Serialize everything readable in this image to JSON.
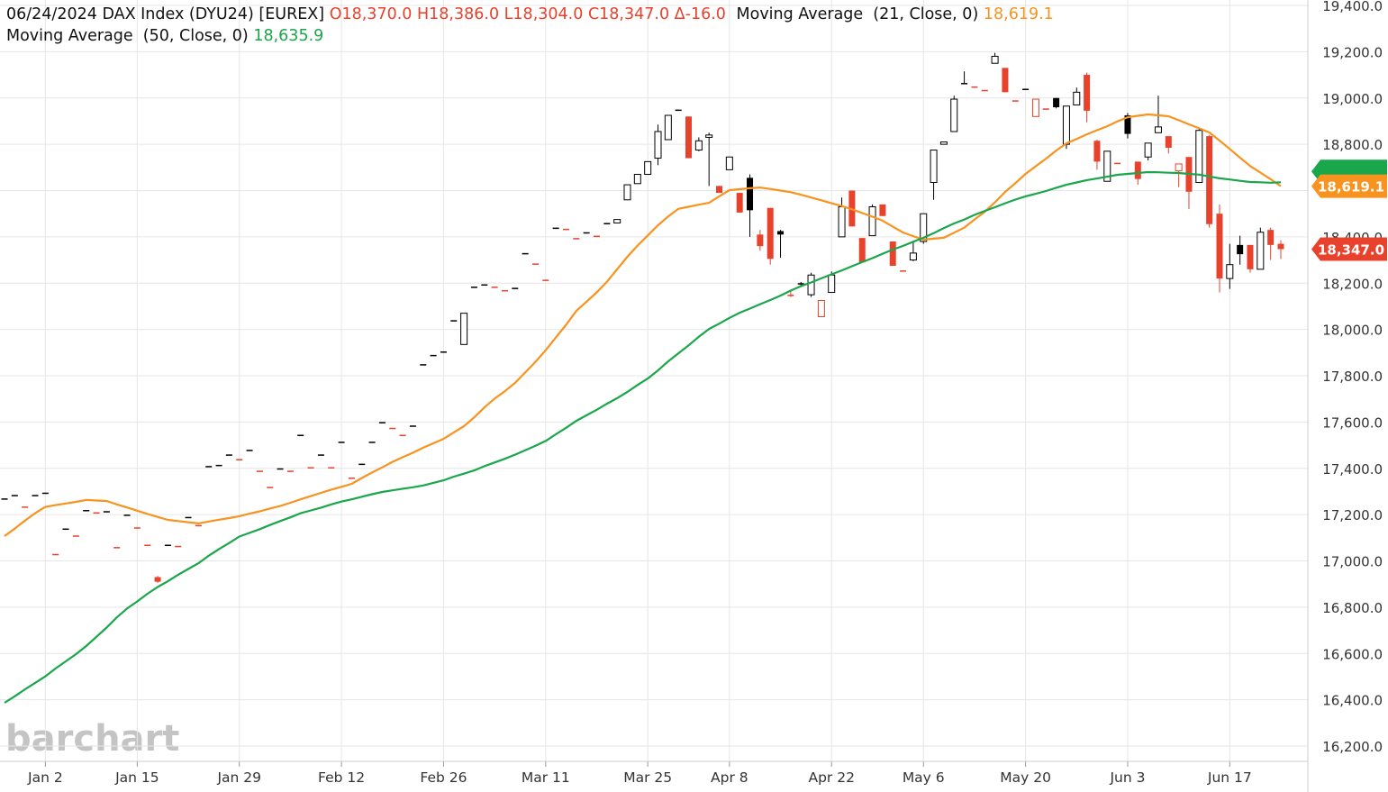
{
  "chart_data": {
    "type": "candlestick",
    "header": {
      "date": "06/24/2024",
      "symbol": "DAX Index (DYU24) [EUREX]",
      "open": "O18,370.0",
      "high": "H18,386.0",
      "low": "L18,304.0",
      "close": "C18,347.0",
      "change": "Δ-16.0"
    },
    "watermark": "barchart",
    "categories": [
      null,
      null,
      null,
      null,
      "Jan 2",
      null,
      null,
      null,
      null,
      null,
      null,
      null,
      null,
      "Jan 15",
      null,
      null,
      null,
      null,
      null,
      null,
      null,
      null,
      null,
      "Jan 29",
      null,
      null,
      null,
      null,
      null,
      null,
      null,
      null,
      null,
      "Feb 12",
      null,
      null,
      null,
      null,
      null,
      null,
      null,
      null,
      null,
      "Feb 26",
      null,
      null,
      null,
      null,
      null,
      null,
      null,
      null,
      null,
      "Mar 11",
      null,
      null,
      null,
      null,
      null,
      null,
      null,
      null,
      null,
      "Mar 25",
      null,
      null,
      null,
      null,
      null,
      null,
      null,
      "Apr 8",
      null,
      null,
      null,
      null,
      null,
      null,
      null,
      null,
      null,
      "Apr 22",
      null,
      null,
      null,
      null,
      null,
      null,
      null,
      null,
      "May 6",
      null,
      null,
      null,
      null,
      null,
      null,
      null,
      null,
      null,
      "May 20",
      null,
      null,
      null,
      null,
      null,
      null,
      null,
      null,
      null,
      "Jun 3",
      null,
      null,
      null,
      null,
      null,
      null,
      null,
      null,
      null,
      "Jun 17",
      null,
      null,
      null,
      null,
      null
    ],
    "open": [
      17270,
      17285,
      17235,
      17285,
      17295,
      17030,
      17140,
      17110,
      17220,
      17210,
      17215,
      17060,
      17200,
      17145,
      17070,
      16930,
      17070,
      17065,
      17190,
      17155,
      17410,
      17415,
      17460,
      17440,
      17480,
      17390,
      17320,
      17400,
      17390,
      17545,
      17405,
      17460,
      17405,
      17515,
      17360,
      17420,
      17515,
      17600,
      17575,
      17545,
      17585,
      17850,
      17890,
      17905,
      18040,
      17935,
      18185,
      18195,
      18185,
      18170,
      18180,
      18330,
      18285,
      18215,
      18440,
      18435,
      18395,
      18420,
      18405,
      18460,
      18460,
      18560,
      18630,
      18670,
      18740,
      18820,
      18950,
      18920,
      18775,
      18830,
      18620,
      18690,
      18590,
      18655,
      18410,
      18525,
      18425,
      18150,
      18200,
      18150,
      18055,
      18160,
      18400,
      18600,
      18395,
      18405,
      18540,
      18380,
      18255,
      18300,
      18380,
      18635,
      18800,
      18855,
      19065,
      19050,
      19035,
      19150,
      19130,
      18990,
      19040,
      18920,
      18955,
      19000,
      18800,
      18970,
      19100,
      18815,
      18640,
      18720,
      18925,
      18725,
      18745,
      18850,
      18835,
      18685,
      18745,
      18635,
      18835,
      18500,
      18220,
      18365,
      18365,
      18260,
      18430,
      18370
    ],
    "high": [
      17270,
      17285,
      17235,
      17285,
      17295,
      17030,
      17140,
      17110,
      17220,
      17210,
      17215,
      17060,
      17200,
      17145,
      17070,
      16935,
      17070,
      17065,
      17190,
      17155,
      17410,
      17415,
      17460,
      17440,
      17480,
      17390,
      17320,
      17400,
      17390,
      17545,
      17405,
      17460,
      17405,
      17515,
      17360,
      17420,
      17515,
      17600,
      17575,
      17545,
      17585,
      17850,
      17890,
      17905,
      18040,
      18070,
      18185,
      18195,
      18185,
      18170,
      18180,
      18330,
      18285,
      18215,
      18440,
      18435,
      18395,
      18420,
      18405,
      18460,
      18475,
      18625,
      18670,
      18725,
      18885,
      18925,
      18950,
      18920,
      18830,
      18850,
      18620,
      18745,
      18590,
      18670,
      18430,
      18525,
      18430,
      18165,
      18205,
      18245,
      18125,
      18250,
      18570,
      18600,
      18395,
      18540,
      18540,
      18380,
      18255,
      18375,
      18500,
      18775,
      18810,
      19010,
      19115,
      19050,
      19035,
      19195,
      19130,
      18990,
      19040,
      18995,
      18955,
      19000,
      18965,
      19045,
      19110,
      18820,
      18770,
      18720,
      18935,
      18725,
      18805,
      19010,
      18835,
      18715,
      18745,
      18870,
      18840,
      18540,
      18370,
      18405,
      18365,
      18440,
      18440,
      18386
    ],
    "low": [
      17270,
      17285,
      17235,
      17285,
      17295,
      17030,
      17140,
      17110,
      17220,
      17210,
      17215,
      17060,
      17200,
      17145,
      17070,
      16905,
      17070,
      17065,
      17190,
      17155,
      17410,
      17415,
      17460,
      17440,
      17480,
      17390,
      17320,
      17400,
      17390,
      17545,
      17405,
      17460,
      17405,
      17515,
      17360,
      17420,
      17515,
      17600,
      17575,
      17545,
      17585,
      17850,
      17890,
      17905,
      18040,
      17935,
      18185,
      18195,
      18185,
      18170,
      18180,
      18330,
      18285,
      18215,
      18440,
      18435,
      18395,
      18420,
      18405,
      18460,
      18460,
      18560,
      18630,
      18670,
      18710,
      18820,
      18950,
      18740,
      18770,
      18620,
      18590,
      18690,
      18505,
      18400,
      18340,
      18280,
      18310,
      18140,
      18185,
      18140,
      18055,
      18160,
      18400,
      18445,
      18290,
      18405,
      18490,
      18275,
      18255,
      18295,
      18370,
      18560,
      18800,
      18855,
      19065,
      19050,
      19035,
      19150,
      19025,
      18990,
      19040,
      18920,
      18955,
      18955,
      18780,
      18970,
      18895,
      18690,
      18640,
      18720,
      18825,
      18625,
      18730,
      18850,
      18760,
      18615,
      18520,
      18635,
      18440,
      18160,
      18175,
      18280,
      18245,
      18260,
      18300,
      18304
    ],
    "close": [
      17270,
      17285,
      17235,
      17285,
      17295,
      17030,
      17140,
      17110,
      17220,
      17210,
      17215,
      17060,
      17200,
      17145,
      17070,
      16910,
      17070,
      17065,
      17190,
      17155,
      17410,
      17415,
      17460,
      17440,
      17480,
      17390,
      17320,
      17400,
      17390,
      17545,
      17405,
      17460,
      17405,
      17515,
      17360,
      17420,
      17515,
      17600,
      17575,
      17545,
      17585,
      17850,
      17890,
      17905,
      18040,
      18070,
      18185,
      18195,
      18185,
      18170,
      18180,
      18330,
      18285,
      18215,
      18440,
      18435,
      18395,
      18420,
      18405,
      18460,
      18475,
      18625,
      18670,
      18725,
      18855,
      18925,
      18950,
      18740,
      18815,
      18840,
      18590,
      18745,
      18505,
      18515,
      18360,
      18305,
      18410,
      18150,
      18200,
      18235,
      18125,
      18235,
      18530,
      18445,
      18290,
      18530,
      18490,
      18275,
      18255,
      18330,
      18500,
      18775,
      18810,
      18995,
      19065,
      19050,
      19035,
      19180,
      19025,
      18990,
      19040,
      18995,
      18955,
      18960,
      18965,
      19025,
      18945,
      18725,
      18770,
      18720,
      18845,
      18650,
      18805,
      18875,
      18785,
      18715,
      18595,
      18860,
      18455,
      18220,
      18280,
      18325,
      18260,
      18420,
      18365,
      18347
    ],
    "up_color": "#000000",
    "down_color": "#e8412c",
    "close_label": "18,347.0",
    "series": [
      {
        "name": "Moving Average  (21, Close, 0)",
        "color": "#f7931e",
        "last_label": "18,619.1",
        "values": [
          17107,
          17139,
          17174,
          17206,
          17233,
          17241,
          17248,
          17255,
          17263,
          17261,
          17259,
          17244,
          17231,
          17217,
          17203,
          17190,
          17177,
          17172,
          17167,
          17162,
          17170,
          17178,
          17185,
          17193,
          17204,
          17214,
          17226,
          17237,
          17251,
          17266,
          17280,
          17294,
          17308,
          17320,
          17333,
          17358,
          17382,
          17404,
          17428,
          17448,
          17467,
          17489,
          17508,
          17527,
          17555,
          17582,
          17620,
          17663,
          17701,
          17733,
          17769,
          17814,
          17860,
          17910,
          17965,
          18020,
          18080,
          18120,
          18160,
          18206,
          18260,
          18314,
          18362,
          18406,
          18450,
          18488,
          18521,
          18530,
          18539,
          18547,
          18575,
          18602,
          18606,
          18610,
          18613,
          18607,
          18600,
          18593,
          18582,
          18570,
          18558,
          18545,
          18533,
          18519,
          18503,
          18487,
          18470,
          18444,
          18419,
          18403,
          18388,
          18392,
          18396,
          18418,
          18440,
          18475,
          18508,
          18549,
          18594,
          18632,
          18672,
          18705,
          18738,
          18773,
          18804,
          18823,
          18843,
          18861,
          18878,
          18899,
          18917,
          18923,
          18929,
          18925,
          18921,
          18904,
          18886,
          18869,
          18851,
          18816,
          18780,
          18742,
          18706,
          18678,
          18649,
          18619.1
        ]
      },
      {
        "name": "Moving Average  (50, Close, 0)",
        "color": "#1aa64a",
        "last_label": "18,635.9",
        "values": [
          16387,
          16415,
          16445,
          16473,
          16501,
          16535,
          16566,
          16597,
          16632,
          16672,
          16712,
          16756,
          16794,
          16825,
          16858,
          16887,
          16912,
          16940,
          16965,
          16990,
          17022,
          17051,
          17077,
          17105,
          17121,
          17137,
          17155,
          17172,
          17188,
          17206,
          17218,
          17230,
          17244,
          17256,
          17266,
          17277,
          17288,
          17298,
          17305,
          17312,
          17318,
          17326,
          17337,
          17348,
          17364,
          17377,
          17391,
          17409,
          17425,
          17441,
          17459,
          17478,
          17497,
          17518,
          17547,
          17575,
          17605,
          17629,
          17653,
          17679,
          17703,
          17730,
          17760,
          17788,
          17823,
          17862,
          17897,
          17931,
          17968,
          18002,
          18025,
          18050,
          18072,
          18090,
          18109,
          18127,
          18146,
          18168,
          18187,
          18203,
          18221,
          18238,
          18255,
          18273,
          18291,
          18308,
          18327,
          18345,
          18361,
          18379,
          18396,
          18416,
          18438,
          18458,
          18475,
          18495,
          18512,
          18528,
          18545,
          18561,
          18575,
          18586,
          18598,
          18612,
          18625,
          18635,
          18645,
          18652,
          18660,
          18668,
          18672,
          18676,
          18680,
          18679,
          18677,
          18676,
          18672,
          18669,
          18661,
          18653,
          18648,
          18642,
          18637,
          18636,
          18634,
          18635.9
        ]
      }
    ],
    "ylim": [
      16200,
      19400
    ],
    "yticks": [
      {
        "value": 16200,
        "label": "16,200.0"
      },
      {
        "value": 16400,
        "label": "16,400.0"
      },
      {
        "value": 16600,
        "label": "16,600.0"
      },
      {
        "value": 16800,
        "label": "16,800.0"
      },
      {
        "value": 17000,
        "label": "17,000.0"
      },
      {
        "value": 17200,
        "label": "17,200.0"
      },
      {
        "value": 17400,
        "label": "17,400.0"
      },
      {
        "value": 17600,
        "label": "17,600.0"
      },
      {
        "value": 17800,
        "label": "17,800.0"
      },
      {
        "value": 18000,
        "label": "18,000.0"
      },
      {
        "value": 18200,
        "label": "18,200.0"
      },
      {
        "value": 18400,
        "label": "18,400.0"
      },
      {
        "value": 18600,
        "label": "18,600.0"
      },
      {
        "value": 18800,
        "label": "18,800.0"
      },
      {
        "value": 19000,
        "label": "19,000.0"
      },
      {
        "value": 19200,
        "label": "19,200.0"
      },
      {
        "value": 19400,
        "label": "19,400.0"
      }
    ],
    "grid": true
  }
}
